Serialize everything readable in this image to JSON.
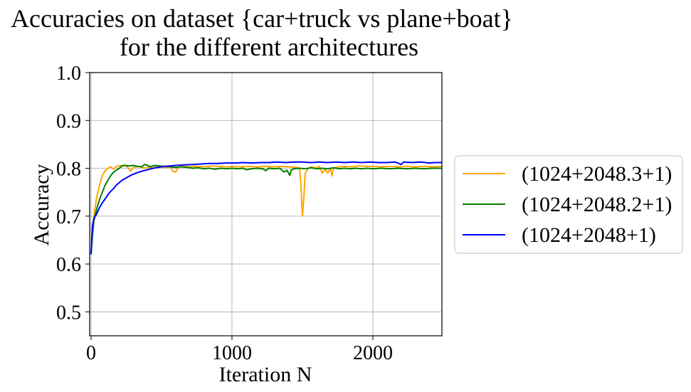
{
  "chart_data": {
    "type": "line",
    "title": [
      "Accuracies on dataset {car+truck vs plane+boat}",
      "for the different architectures"
    ],
    "xlabel": "Iteration N",
    "ylabel": "Accuracy",
    "xlim": [
      -10,
      2490
    ],
    "ylim": [
      0.45,
      1.0
    ],
    "xticks": [
      0,
      1000,
      2000
    ],
    "xtick_labels": [
      "0",
      "1000",
      "2000"
    ],
    "yticks": [
      0.5,
      0.6,
      0.7,
      0.8,
      0.9,
      1.0
    ],
    "ytick_labels": [
      "0.5",
      "0.6",
      "0.7",
      "0.8",
      "0.9",
      "1.0"
    ],
    "grid": true,
    "legend_position": "right, outside the plot",
    "series": [
      {
        "name": "(1024+2048.3+1)",
        "color": "#ffa500",
        "points": [
          [
            0,
            0.62
          ],
          [
            10,
            0.67
          ],
          [
            20,
            0.7
          ],
          [
            40,
            0.74
          ],
          [
            60,
            0.765
          ],
          [
            80,
            0.785
          ],
          [
            100,
            0.795
          ],
          [
            120,
            0.8
          ],
          [
            140,
            0.803
          ],
          [
            160,
            0.798
          ],
          [
            180,
            0.804
          ],
          [
            200,
            0.805
          ],
          [
            230,
            0.806
          ],
          [
            250,
            0.805
          ],
          [
            280,
            0.794
          ],
          [
            300,
            0.802
          ],
          [
            340,
            0.804
          ],
          [
            380,
            0.8
          ],
          [
            420,
            0.803
          ],
          [
            440,
            0.799
          ],
          [
            460,
            0.804
          ],
          [
            500,
            0.803
          ],
          [
            530,
            0.801
          ],
          [
            560,
            0.804
          ],
          [
            580,
            0.794
          ],
          [
            600,
            0.792
          ],
          [
            620,
            0.803
          ],
          [
            660,
            0.804
          ],
          [
            700,
            0.803
          ],
          [
            740,
            0.804
          ],
          [
            800,
            0.803
          ],
          [
            860,
            0.805
          ],
          [
            900,
            0.804
          ],
          [
            960,
            0.803
          ],
          [
            1000,
            0.804
          ],
          [
            1060,
            0.803
          ],
          [
            1120,
            0.804
          ],
          [
            1180,
            0.803
          ],
          [
            1240,
            0.804
          ],
          [
            1300,
            0.803
          ],
          [
            1350,
            0.804
          ],
          [
            1400,
            0.803
          ],
          [
            1460,
            0.802
          ],
          [
            1480,
            0.8
          ],
          [
            1490,
            0.76
          ],
          [
            1500,
            0.7
          ],
          [
            1510,
            0.74
          ],
          [
            1520,
            0.79
          ],
          [
            1540,
            0.799
          ],
          [
            1560,
            0.803
          ],
          [
            1600,
            0.801
          ],
          [
            1620,
            0.804
          ],
          [
            1640,
            0.79
          ],
          [
            1660,
            0.798
          ],
          [
            1680,
            0.79
          ],
          [
            1700,
            0.8
          ],
          [
            1710,
            0.784
          ],
          [
            1720,
            0.8
          ],
          [
            1760,
            0.803
          ],
          [
            1800,
            0.804
          ],
          [
            1860,
            0.803
          ],
          [
            1900,
            0.805
          ],
          [
            1960,
            0.804
          ],
          [
            2000,
            0.804
          ],
          [
            2060,
            0.803
          ],
          [
            2120,
            0.804
          ],
          [
            2180,
            0.803
          ],
          [
            2240,
            0.804
          ],
          [
            2300,
            0.803
          ],
          [
            2360,
            0.804
          ],
          [
            2420,
            0.803
          ],
          [
            2490,
            0.804
          ]
        ]
      },
      {
        "name": "(1024+2048.2+1)",
        "color": "#008000",
        "points": [
          [
            0,
            0.62
          ],
          [
            10,
            0.66
          ],
          [
            20,
            0.69
          ],
          [
            40,
            0.715
          ],
          [
            60,
            0.735
          ],
          [
            80,
            0.75
          ],
          [
            100,
            0.765
          ],
          [
            120,
            0.775
          ],
          [
            140,
            0.785
          ],
          [
            160,
            0.792
          ],
          [
            180,
            0.796
          ],
          [
            200,
            0.8
          ],
          [
            220,
            0.805
          ],
          [
            240,
            0.806
          ],
          [
            270,
            0.805
          ],
          [
            300,
            0.806
          ],
          [
            330,
            0.804
          ],
          [
            360,
            0.803
          ],
          [
            380,
            0.808
          ],
          [
            400,
            0.806
          ],
          [
            420,
            0.803
          ],
          [
            450,
            0.806
          ],
          [
            480,
            0.805
          ],
          [
            520,
            0.804
          ],
          [
            560,
            0.803
          ],
          [
            600,
            0.802
          ],
          [
            640,
            0.803
          ],
          [
            680,
            0.802
          ],
          [
            720,
            0.8
          ],
          [
            760,
            0.801
          ],
          [
            800,
            0.799
          ],
          [
            840,
            0.8
          ],
          [
            880,
            0.798
          ],
          [
            920,
            0.8
          ],
          [
            960,
            0.799
          ],
          [
            1000,
            0.8
          ],
          [
            1040,
            0.799
          ],
          [
            1080,
            0.8
          ],
          [
            1100,
            0.797
          ],
          [
            1140,
            0.799
          ],
          [
            1180,
            0.8
          ],
          [
            1220,
            0.799
          ],
          [
            1240,
            0.795
          ],
          [
            1260,
            0.8
          ],
          [
            1300,
            0.799
          ],
          [
            1340,
            0.8
          ],
          [
            1370,
            0.792
          ],
          [
            1390,
            0.796
          ],
          [
            1410,
            0.785
          ],
          [
            1420,
            0.796
          ],
          [
            1440,
            0.799
          ],
          [
            1480,
            0.8
          ],
          [
            1520,
            0.799
          ],
          [
            1560,
            0.801
          ],
          [
            1600,
            0.799
          ],
          [
            1640,
            0.8
          ],
          [
            1680,
            0.799
          ],
          [
            1720,
            0.801
          ],
          [
            1760,
            0.799
          ],
          [
            1800,
            0.8
          ],
          [
            1840,
            0.799
          ],
          [
            1880,
            0.8
          ],
          [
            1920,
            0.799
          ],
          [
            1960,
            0.8
          ],
          [
            2000,
            0.799
          ],
          [
            2060,
            0.8
          ],
          [
            2120,
            0.799
          ],
          [
            2180,
            0.8
          ],
          [
            2240,
            0.799
          ],
          [
            2300,
            0.8
          ],
          [
            2360,
            0.799
          ],
          [
            2420,
            0.8
          ],
          [
            2490,
            0.8
          ]
        ]
      },
      {
        "name": "(1024+2048+1)",
        "color": "#0000ff",
        "points": [
          [
            0,
            0.62
          ],
          [
            5,
            0.655
          ],
          [
            10,
            0.68
          ],
          [
            20,
            0.695
          ],
          [
            40,
            0.705
          ],
          [
            60,
            0.718
          ],
          [
            80,
            0.728
          ],
          [
            100,
            0.736
          ],
          [
            120,
            0.745
          ],
          [
            140,
            0.752
          ],
          [
            160,
            0.758
          ],
          [
            180,
            0.765
          ],
          [
            200,
            0.77
          ],
          [
            220,
            0.775
          ],
          [
            250,
            0.78
          ],
          [
            280,
            0.785
          ],
          [
            320,
            0.79
          ],
          [
            360,
            0.794
          ],
          [
            400,
            0.797
          ],
          [
            440,
            0.8
          ],
          [
            480,
            0.802
          ],
          [
            520,
            0.804
          ],
          [
            560,
            0.805
          ],
          [
            600,
            0.806
          ],
          [
            660,
            0.807
          ],
          [
            720,
            0.808
          ],
          [
            780,
            0.809
          ],
          [
            840,
            0.81
          ],
          [
            900,
            0.81
          ],
          [
            960,
            0.811
          ],
          [
            1020,
            0.811
          ],
          [
            1080,
            0.812
          ],
          [
            1140,
            0.811
          ],
          [
            1200,
            0.812
          ],
          [
            1260,
            0.812
          ],
          [
            1320,
            0.813
          ],
          [
            1380,
            0.812
          ],
          [
            1440,
            0.813
          ],
          [
            1500,
            0.813
          ],
          [
            1560,
            0.812
          ],
          [
            1620,
            0.813
          ],
          [
            1680,
            0.812
          ],
          [
            1740,
            0.813
          ],
          [
            1800,
            0.812
          ],
          [
            1860,
            0.813
          ],
          [
            1920,
            0.812
          ],
          [
            1980,
            0.813
          ],
          [
            2040,
            0.812
          ],
          [
            2100,
            0.812
          ],
          [
            2160,
            0.813
          ],
          [
            2200,
            0.808
          ],
          [
            2220,
            0.813
          ],
          [
            2280,
            0.812
          ],
          [
            2340,
            0.813
          ],
          [
            2400,
            0.811
          ],
          [
            2440,
            0.812
          ],
          [
            2490,
            0.812
          ]
        ]
      }
    ]
  }
}
